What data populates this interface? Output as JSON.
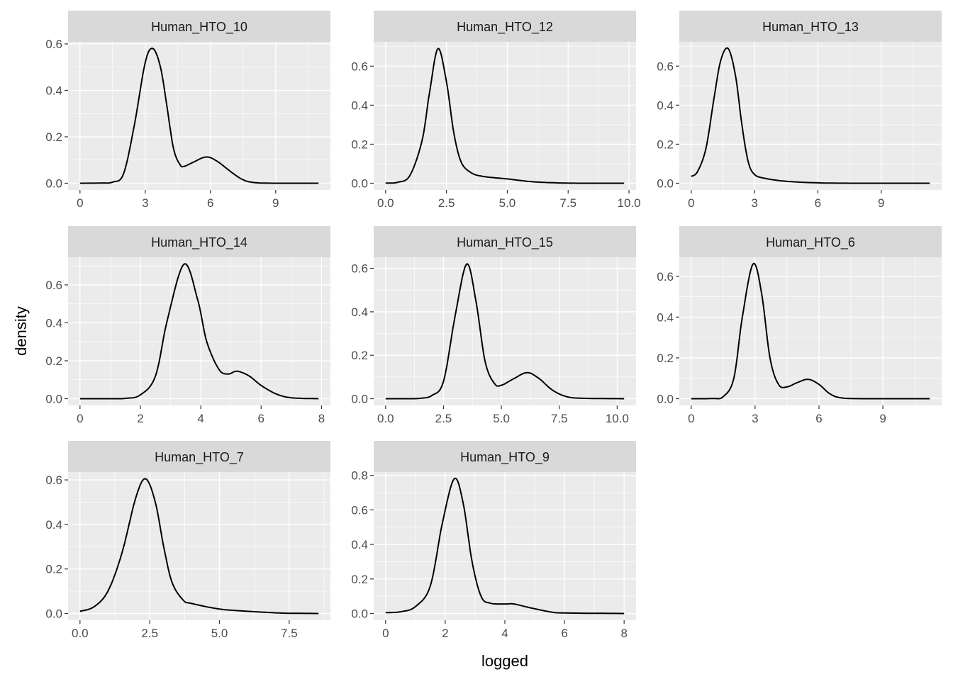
{
  "chart_data": {
    "type": "line",
    "kind": "faceted density plot",
    "xlabel": "logged",
    "ylabel": "density",
    "facet_scales": "free",
    "grid": true,
    "colors": {
      "panel_bg": "#ebebeb",
      "strip_bg": "#d9d9d9",
      "line": "#000000",
      "grid": "#ffffff",
      "tick_text": "#4d4d4d"
    },
    "panels": [
      {
        "title": "Human_HTO_10",
        "xticks": [
          "0",
          "3",
          "6",
          "9"
        ],
        "xtick_values": [
          0,
          3,
          6,
          9
        ],
        "yticks": [
          "0.0",
          "0.2",
          "0.4",
          "0.6"
        ],
        "ytick_values": [
          0,
          0.2,
          0.4,
          0.6
        ],
        "points": [
          [
            0,
            0
          ],
          [
            1,
            0.001
          ],
          [
            1.5,
            0.005
          ],
          [
            2,
            0.04
          ],
          [
            2.5,
            0.25
          ],
          [
            3,
            0.52
          ],
          [
            3.35,
            0.58
          ],
          [
            3.7,
            0.5
          ],
          [
            4,
            0.33
          ],
          [
            4.3,
            0.15
          ],
          [
            4.6,
            0.08
          ],
          [
            4.8,
            0.073
          ],
          [
            5.2,
            0.09
          ],
          [
            5.8,
            0.113
          ],
          [
            6.3,
            0.095
          ],
          [
            7,
            0.045
          ],
          [
            7.5,
            0.015
          ],
          [
            8,
            0.003
          ],
          [
            9,
            0
          ],
          [
            10.97,
            0
          ]
        ]
      },
      {
        "title": "Human_HTO_12",
        "xticks": [
          "0.0",
          "2.5",
          "5.0",
          "7.5",
          "10.0"
        ],
        "xtick_values": [
          0,
          2.5,
          5,
          7.5,
          10
        ],
        "yticks": [
          "0.0",
          "0.2",
          "0.4",
          "0.6"
        ],
        "ytick_values": [
          0,
          0.2,
          0.4,
          0.6
        ],
        "points": [
          [
            0,
            0.001
          ],
          [
            0.5,
            0.005
          ],
          [
            1,
            0.04
          ],
          [
            1.5,
            0.22
          ],
          [
            1.8,
            0.46
          ],
          [
            2.15,
            0.69
          ],
          [
            2.5,
            0.52
          ],
          [
            2.8,
            0.26
          ],
          [
            3.1,
            0.11
          ],
          [
            3.5,
            0.055
          ],
          [
            4,
            0.035
          ],
          [
            5,
            0.022
          ],
          [
            6,
            0.008
          ],
          [
            7,
            0.002
          ],
          [
            8,
            0
          ],
          [
            9.8,
            0
          ]
        ]
      },
      {
        "title": "Human_HTO_13",
        "xticks": [
          "0",
          "3",
          "6",
          "9"
        ],
        "xtick_values": [
          0,
          3,
          6,
          9
        ],
        "yticks": [
          "0.0",
          "0.2",
          "0.4",
          "0.6"
        ],
        "ytick_values": [
          0,
          0.2,
          0.4,
          0.6
        ],
        "points": [
          [
            0,
            0.035
          ],
          [
            0.3,
            0.06
          ],
          [
            0.7,
            0.18
          ],
          [
            1.1,
            0.45
          ],
          [
            1.4,
            0.63
          ],
          [
            1.75,
            0.69
          ],
          [
            2.1,
            0.55
          ],
          [
            2.4,
            0.3
          ],
          [
            2.7,
            0.11
          ],
          [
            3,
            0.045
          ],
          [
            3.5,
            0.025
          ],
          [
            4.5,
            0.01
          ],
          [
            6,
            0.002
          ],
          [
            8,
            0
          ],
          [
            11.3,
            0
          ]
        ]
      },
      {
        "title": "Human_HTO_14",
        "xticks": [
          "0",
          "2",
          "4",
          "6",
          "8"
        ],
        "xtick_values": [
          0,
          2,
          4,
          6,
          8
        ],
        "yticks": [
          "0.0",
          "0.2",
          "0.4",
          "0.6"
        ],
        "ytick_values": [
          0,
          0.2,
          0.4,
          0.6
        ],
        "points": [
          [
            0,
            0
          ],
          [
            1,
            0
          ],
          [
            1.5,
            0.002
          ],
          [
            2,
            0.02
          ],
          [
            2.5,
            0.12
          ],
          [
            2.9,
            0.42
          ],
          [
            3.45,
            0.71
          ],
          [
            3.9,
            0.52
          ],
          [
            4.2,
            0.3
          ],
          [
            4.6,
            0.155
          ],
          [
            4.9,
            0.13
          ],
          [
            5.2,
            0.145
          ],
          [
            5.6,
            0.12
          ],
          [
            6,
            0.07
          ],
          [
            6.5,
            0.025
          ],
          [
            7,
            0.005
          ],
          [
            7.9,
            0
          ]
        ]
      },
      {
        "title": "Human_HTO_15",
        "xticks": [
          "0.0",
          "2.5",
          "5.0",
          "7.5",
          "10.0"
        ],
        "xtick_values": [
          0,
          2.5,
          5,
          7.5,
          10
        ],
        "yticks": [
          "0.0",
          "0.2",
          "0.4",
          "0.6"
        ],
        "ytick_values": [
          0,
          0.2,
          0.4,
          0.6
        ],
        "points": [
          [
            0,
            0
          ],
          [
            1,
            0
          ],
          [
            1.5,
            0.002
          ],
          [
            2,
            0.015
          ],
          [
            2.5,
            0.08
          ],
          [
            3,
            0.38
          ],
          [
            3.5,
            0.62
          ],
          [
            3.9,
            0.45
          ],
          [
            4.3,
            0.17
          ],
          [
            4.7,
            0.07
          ],
          [
            5,
            0.062
          ],
          [
            5.5,
            0.09
          ],
          [
            6.1,
            0.12
          ],
          [
            6.6,
            0.095
          ],
          [
            7.2,
            0.04
          ],
          [
            7.8,
            0.01
          ],
          [
            8.5,
            0.002
          ],
          [
            10.3,
            0
          ]
        ]
      },
      {
        "title": "Human_HTO_6",
        "xticks": [
          "0",
          "3",
          "6",
          "9"
        ],
        "xtick_values": [
          0,
          3,
          6,
          9
        ],
        "yticks": [
          "0.0",
          "0.2",
          "0.4",
          "0.6"
        ],
        "ytick_values": [
          0,
          0.2,
          0.4,
          0.6
        ],
        "points": [
          [
            0,
            0
          ],
          [
            1,
            0.001
          ],
          [
            1.5,
            0.01
          ],
          [
            2,
            0.1
          ],
          [
            2.4,
            0.4
          ],
          [
            2.9,
            0.66
          ],
          [
            3.3,
            0.52
          ],
          [
            3.7,
            0.2
          ],
          [
            4.1,
            0.07
          ],
          [
            4.5,
            0.058
          ],
          [
            5,
            0.08
          ],
          [
            5.5,
            0.095
          ],
          [
            6,
            0.07
          ],
          [
            6.5,
            0.025
          ],
          [
            7,
            0.005
          ],
          [
            8,
            0
          ],
          [
            11.2,
            0
          ]
        ]
      },
      {
        "title": "Human_HTO_7",
        "xticks": [
          "0.0",
          "2.5",
          "5.0",
          "7.5"
        ],
        "xtick_values": [
          0,
          2.5,
          5,
          7.5
        ],
        "yticks": [
          "0.0",
          "0.2",
          "0.4",
          "0.6"
        ],
        "ytick_values": [
          0,
          0.2,
          0.4,
          0.6
        ],
        "points": [
          [
            0,
            0.01
          ],
          [
            0.5,
            0.03
          ],
          [
            1,
            0.1
          ],
          [
            1.5,
            0.27
          ],
          [
            2,
            0.52
          ],
          [
            2.35,
            0.605
          ],
          [
            2.7,
            0.5
          ],
          [
            3,
            0.3
          ],
          [
            3.3,
            0.14
          ],
          [
            3.7,
            0.06
          ],
          [
            4,
            0.045
          ],
          [
            5,
            0.02
          ],
          [
            6,
            0.01
          ],
          [
            7,
            0.003
          ],
          [
            7.5,
            0.001
          ],
          [
            8.55,
            0
          ]
        ]
      },
      {
        "title": "Human_HTO_9",
        "xticks": [
          "0",
          "2",
          "4",
          "6",
          "8"
        ],
        "xtick_values": [
          0,
          2,
          4,
          6,
          8
        ],
        "yticks": [
          "0.0",
          "0.2",
          "0.4",
          "0.6",
          "0.8"
        ],
        "ytick_values": [
          0,
          0.2,
          0.4,
          0.6,
          0.8
        ],
        "points": [
          [
            0,
            0.005
          ],
          [
            0.5,
            0.01
          ],
          [
            1,
            0.04
          ],
          [
            1.5,
            0.16
          ],
          [
            1.9,
            0.52
          ],
          [
            2.3,
            0.78
          ],
          [
            2.6,
            0.64
          ],
          [
            2.9,
            0.3
          ],
          [
            3.2,
            0.1
          ],
          [
            3.5,
            0.06
          ],
          [
            4,
            0.055
          ],
          [
            4.3,
            0.055
          ],
          [
            4.8,
            0.035
          ],
          [
            5.5,
            0.01
          ],
          [
            6,
            0.003
          ],
          [
            8,
            0
          ]
        ]
      }
    ]
  }
}
